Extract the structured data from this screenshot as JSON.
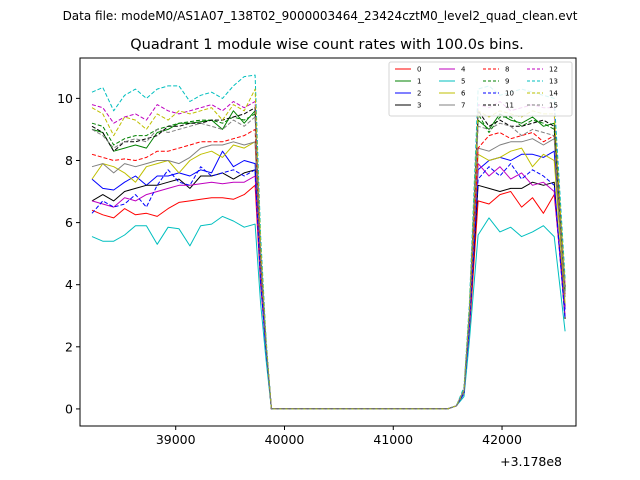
{
  "header": {
    "data_file": "Data file: modeM0/AS1A07_138T02_9000003464_23424cztM0_level2_quad_clean.evt"
  },
  "chart_data": {
    "type": "line",
    "title": "Quadrant 1 module wise count rates with 100.0s bins.",
    "xlabel": "",
    "ylabel": "",
    "x_offset_label": "+3.178e8",
    "xlim": [
      38120,
      42680
    ],
    "ylim": [
      -0.55,
      11.3
    ],
    "x_ticks": [
      39000,
      40000,
      41000,
      42000
    ],
    "x_tick_labels": [
      "39000",
      "40000",
      "41000",
      "42000"
    ],
    "y_ticks": [
      0,
      2,
      4,
      6,
      8,
      10
    ],
    "y_tick_labels": [
      "0",
      "2",
      "4",
      "6",
      "8",
      "10"
    ],
    "grid": false,
    "legend_position": "top-right",
    "legend_columns": 4,
    "x": [
      38230,
      38330,
      38430,
      38530,
      38630,
      38730,
      38830,
      38930,
      39030,
      39130,
      39230,
      39330,
      39430,
      39530,
      39630,
      39730,
      39780,
      39830,
      39880,
      39980,
      40100,
      40300,
      40500,
      40700,
      40900,
      41100,
      41300,
      41500,
      41580,
      41650,
      41700,
      41780,
      41880,
      41980,
      42080,
      42180,
      42280,
      42380,
      42480,
      42580
    ],
    "series": [
      {
        "name": "0",
        "color": "#ff0000",
        "dash": "solid",
        "values": [
          6.4,
          6.25,
          6.15,
          6.45,
          6.25,
          6.3,
          6.2,
          6.45,
          6.65,
          6.7,
          6.75,
          6.8,
          6.8,
          6.75,
          6.9,
          7.2,
          4.0,
          2.0,
          0.0,
          0.0,
          0.0,
          0.0,
          0.0,
          0.0,
          0.0,
          0.0,
          0.0,
          0.0,
          0.1,
          0.5,
          2.5,
          6.7,
          6.6,
          6.9,
          7.0,
          6.5,
          6.8,
          6.3,
          6.9,
          3.3
        ]
      },
      {
        "name": "1",
        "color": "#008000",
        "dash": "solid",
        "values": [
          9.0,
          8.9,
          8.3,
          8.4,
          8.5,
          8.4,
          8.9,
          9.0,
          9.2,
          9.2,
          9.25,
          9.3,
          9.0,
          9.6,
          9.2,
          9.6,
          5.0,
          2.1,
          0.0,
          0.0,
          0.0,
          0.0,
          0.0,
          0.0,
          0.0,
          0.0,
          0.0,
          0.0,
          0.1,
          0.6,
          3.0,
          9.3,
          9.0,
          9.5,
          9.3,
          9.2,
          9.4,
          9.1,
          9.2,
          3.8
        ]
      },
      {
        "name": "2",
        "color": "#0000ff",
        "dash": "solid",
        "values": [
          7.4,
          7.1,
          7.05,
          7.3,
          7.5,
          7.2,
          7.5,
          7.5,
          7.6,
          7.5,
          7.7,
          7.6,
          8.3,
          7.8,
          8.0,
          7.9,
          4.3,
          2.0,
          0.0,
          0.0,
          0.0,
          0.0,
          0.0,
          0.0,
          0.0,
          0.0,
          0.0,
          0.0,
          0.1,
          0.5,
          2.8,
          7.7,
          8.0,
          8.1,
          8.0,
          8.2,
          8.2,
          8.1,
          8.3,
          3.2
        ]
      },
      {
        "name": "3",
        "color": "#000000",
        "dash": "solid",
        "values": [
          6.7,
          6.9,
          6.7,
          7.0,
          7.1,
          7.2,
          7.2,
          7.3,
          7.4,
          7.1,
          7.5,
          7.5,
          7.6,
          7.4,
          7.6,
          7.7,
          4.2,
          1.9,
          0.0,
          0.0,
          0.0,
          0.0,
          0.0,
          0.0,
          0.0,
          0.0,
          0.0,
          0.0,
          0.1,
          0.5,
          2.7,
          7.2,
          7.1,
          7.0,
          7.1,
          7.1,
          7.3,
          7.2,
          7.3,
          2.9
        ]
      },
      {
        "name": "4",
        "color": "#bf00bf",
        "dash": "solid",
        "values": [
          6.7,
          6.6,
          6.5,
          6.8,
          6.7,
          6.9,
          7.0,
          7.1,
          7.2,
          7.2,
          7.25,
          7.3,
          7.25,
          7.3,
          7.3,
          7.5,
          4.1,
          1.9,
          0.0,
          0.0,
          0.0,
          0.0,
          0.0,
          0.0,
          0.0,
          0.0,
          0.0,
          0.0,
          0.1,
          0.5,
          2.6,
          7.9,
          7.5,
          7.8,
          7.4,
          7.6,
          7.2,
          7.3,
          7.0,
          3.0
        ]
      },
      {
        "name": "5",
        "color": "#00bfbf",
        "dash": "solid",
        "values": [
          5.55,
          5.4,
          5.4,
          5.6,
          5.9,
          5.9,
          5.3,
          5.85,
          5.8,
          5.25,
          5.9,
          5.95,
          6.2,
          6.05,
          5.85,
          5.95,
          3.4,
          1.6,
          0.0,
          0.0,
          0.0,
          0.0,
          0.0,
          0.0,
          0.0,
          0.0,
          0.0,
          0.0,
          0.1,
          0.4,
          2.2,
          5.6,
          6.15,
          5.7,
          5.85,
          5.55,
          5.7,
          5.9,
          5.55,
          2.5
        ]
      },
      {
        "name": "6",
        "color": "#bfbf00",
        "dash": "solid",
        "values": [
          7.4,
          7.9,
          7.8,
          7.6,
          7.3,
          7.8,
          7.9,
          8.0,
          7.6,
          8.0,
          8.2,
          8.3,
          8.1,
          8.5,
          8.4,
          8.6,
          4.6,
          2.0,
          0.0,
          0.0,
          0.0,
          0.0,
          0.0,
          0.0,
          0.0,
          0.0,
          0.0,
          0.0,
          0.1,
          0.5,
          2.9,
          8.2,
          8.0,
          8.1,
          8.3,
          8.4,
          7.8,
          8.2,
          8.0,
          3.4
        ]
      },
      {
        "name": "7",
        "color": "#808080",
        "dash": "solid",
        "values": [
          7.8,
          7.9,
          7.6,
          7.9,
          7.8,
          7.9,
          8.0,
          8.0,
          7.9,
          8.1,
          8.4,
          8.5,
          8.5,
          8.6,
          8.5,
          8.6,
          4.6,
          2.0,
          0.0,
          0.0,
          0.0,
          0.0,
          0.0,
          0.0,
          0.0,
          0.0,
          0.0,
          0.0,
          0.1,
          0.5,
          2.9,
          8.4,
          8.3,
          8.5,
          8.6,
          8.6,
          8.7,
          8.5,
          8.7,
          3.6
        ]
      },
      {
        "name": "8",
        "color": "#ff0000",
        "dash": "dashed",
        "values": [
          8.2,
          8.1,
          8.0,
          8.05,
          8.0,
          8.1,
          8.3,
          8.3,
          8.4,
          8.5,
          8.6,
          8.6,
          8.6,
          8.7,
          8.8,
          9.0,
          4.8,
          2.1,
          0.0,
          0.0,
          0.0,
          0.0,
          0.0,
          0.0,
          0.0,
          0.0,
          0.0,
          0.0,
          0.1,
          0.6,
          3.0,
          8.4,
          8.8,
          8.9,
          8.7,
          8.8,
          8.9,
          8.6,
          8.8,
          3.7
        ]
      },
      {
        "name": "9",
        "color": "#008000",
        "dash": "dashed",
        "values": [
          9.2,
          9.1,
          8.5,
          8.7,
          8.8,
          8.8,
          9.0,
          9.1,
          9.2,
          9.25,
          9.3,
          9.3,
          9.2,
          9.4,
          9.3,
          9.5,
          5.0,
          2.1,
          0.0,
          0.0,
          0.0,
          0.0,
          0.0,
          0.0,
          0.0,
          0.0,
          0.0,
          0.0,
          0.1,
          0.6,
          3.1,
          9.5,
          8.9,
          9.4,
          9.4,
          9.1,
          9.3,
          9.2,
          9.0,
          3.8
        ]
      },
      {
        "name": "10",
        "color": "#0000ff",
        "dash": "dashed",
        "values": [
          6.3,
          6.7,
          6.5,
          6.6,
          6.9,
          6.5,
          7.2,
          7.7,
          7.3,
          7.2,
          7.8,
          7.5,
          7.6,
          7.7,
          7.5,
          7.7,
          4.1,
          1.9,
          0.0,
          0.0,
          0.0,
          0.0,
          0.0,
          0.0,
          0.0,
          0.0,
          0.0,
          0.0,
          0.1,
          0.5,
          2.7,
          7.4,
          7.8,
          7.5,
          7.9,
          7.4,
          7.7,
          7.5,
          7.2,
          2.9
        ]
      },
      {
        "name": "11",
        "color": "#000000",
        "dash": "dashed",
        "values": [
          9.1,
          8.9,
          8.3,
          8.6,
          8.6,
          8.7,
          8.8,
          9.1,
          9.1,
          9.2,
          9.2,
          9.3,
          9.3,
          9.4,
          9.5,
          9.7,
          5.0,
          2.1,
          0.0,
          0.0,
          0.0,
          0.0,
          0.0,
          0.0,
          0.0,
          0.0,
          0.0,
          0.0,
          0.1,
          0.6,
          3.1,
          9.6,
          9.1,
          9.3,
          9.1,
          9.1,
          9.2,
          9.3,
          9.1,
          3.9
        ]
      },
      {
        "name": "12",
        "color": "#bf00bf",
        "dash": "dashed",
        "values": [
          9.8,
          9.7,
          9.2,
          9.4,
          9.5,
          9.3,
          9.8,
          9.6,
          9.5,
          9.6,
          9.7,
          9.8,
          9.6,
          9.9,
          9.7,
          9.9,
          5.2,
          2.2,
          0.0,
          0.0,
          0.0,
          0.0,
          0.0,
          0.0,
          0.0,
          0.0,
          0.0,
          0.0,
          0.1,
          0.6,
          3.2,
          9.8,
          9.7,
          9.9,
          9.6,
          9.7,
          9.8,
          9.7,
          9.7,
          4.0
        ]
      },
      {
        "name": "13",
        "color": "#00bfbf",
        "dash": "dashed",
        "values": [
          10.2,
          10.35,
          9.6,
          10.1,
          10.3,
          10.0,
          10.3,
          10.4,
          10.4,
          9.9,
          10.1,
          10.2,
          10.0,
          10.4,
          10.7,
          10.75,
          5.6,
          2.3,
          0.0,
          0.0,
          0.0,
          0.0,
          0.0,
          0.0,
          0.0,
          0.0,
          0.0,
          0.0,
          0.1,
          0.7,
          3.4,
          10.3,
          10.4,
          10.1,
          10.2,
          10.3,
          10.2,
          10.1,
          10.0,
          4.2
        ]
      },
      {
        "name": "14",
        "color": "#bfbf00",
        "dash": "dashed",
        "values": [
          9.7,
          9.5,
          8.8,
          9.4,
          9.3,
          9.0,
          9.5,
          9.3,
          9.6,
          9.5,
          9.6,
          9.7,
          9.3,
          9.8,
          9.6,
          10.3,
          5.3,
          2.2,
          0.0,
          0.0,
          0.0,
          0.0,
          0.0,
          0.0,
          0.0,
          0.0,
          0.0,
          0.0,
          0.1,
          0.6,
          3.2,
          9.6,
          9.4,
          9.6,
          9.5,
          9.4,
          9.6,
          9.5,
          9.5,
          4.0
        ]
      },
      {
        "name": "15",
        "color": "#808080",
        "dash": "dashed",
        "values": [
          9.0,
          8.8,
          8.4,
          8.6,
          8.7,
          8.6,
          9.0,
          8.9,
          9.0,
          9.1,
          9.2,
          9.1,
          9.0,
          9.3,
          9.1,
          9.4,
          4.9,
          2.1,
          0.0,
          0.0,
          0.0,
          0.0,
          0.0,
          0.0,
          0.0,
          0.0,
          0.0,
          0.0,
          0.1,
          0.6,
          3.0,
          9.1,
          9.0,
          9.2,
          9.1,
          8.8,
          9.0,
          8.9,
          8.8,
          3.7
        ]
      }
    ]
  }
}
